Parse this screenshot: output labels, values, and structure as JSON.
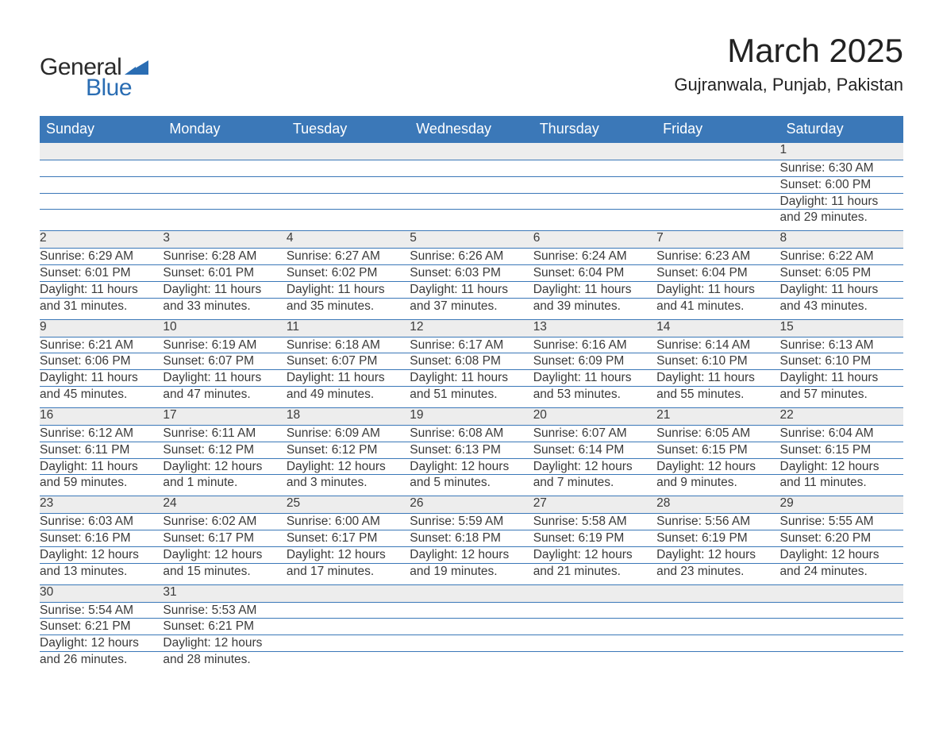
{
  "logo": {
    "word1": "General",
    "word2": "Blue"
  },
  "title": "March 2025",
  "location": "Gujranwala, Punjab, Pakistan",
  "colors": {
    "header_bg": "#3b78b8",
    "header_text": "#ffffff",
    "daynum_bg": "#ededed",
    "border": "#3b78b8",
    "text": "#333333",
    "logo_dark": "#2a2a2a",
    "logo_blue": "#2a6db3",
    "background": "#ffffff"
  },
  "typography": {
    "title_fontsize": 42,
    "location_fontsize": 22,
    "header_fontsize": 18,
    "daynum_fontsize": 17,
    "detail_fontsize": 15.5
  },
  "calendar": {
    "type": "table",
    "columns": [
      "Sunday",
      "Monday",
      "Tuesday",
      "Wednesday",
      "Thursday",
      "Friday",
      "Saturday"
    ],
    "weeks": [
      [
        null,
        null,
        null,
        null,
        null,
        null,
        {
          "day": "1",
          "sunrise": "Sunrise: 6:30 AM",
          "sunset": "Sunset: 6:00 PM",
          "dl1": "Daylight: 11 hours",
          "dl2": "and 29 minutes."
        }
      ],
      [
        {
          "day": "2",
          "sunrise": "Sunrise: 6:29 AM",
          "sunset": "Sunset: 6:01 PM",
          "dl1": "Daylight: 11 hours",
          "dl2": "and 31 minutes."
        },
        {
          "day": "3",
          "sunrise": "Sunrise: 6:28 AM",
          "sunset": "Sunset: 6:01 PM",
          "dl1": "Daylight: 11 hours",
          "dl2": "and 33 minutes."
        },
        {
          "day": "4",
          "sunrise": "Sunrise: 6:27 AM",
          "sunset": "Sunset: 6:02 PM",
          "dl1": "Daylight: 11 hours",
          "dl2": "and 35 minutes."
        },
        {
          "day": "5",
          "sunrise": "Sunrise: 6:26 AM",
          "sunset": "Sunset: 6:03 PM",
          "dl1": "Daylight: 11 hours",
          "dl2": "and 37 minutes."
        },
        {
          "day": "6",
          "sunrise": "Sunrise: 6:24 AM",
          "sunset": "Sunset: 6:04 PM",
          "dl1": "Daylight: 11 hours",
          "dl2": "and 39 minutes."
        },
        {
          "day": "7",
          "sunrise": "Sunrise: 6:23 AM",
          "sunset": "Sunset: 6:04 PM",
          "dl1": "Daylight: 11 hours",
          "dl2": "and 41 minutes."
        },
        {
          "day": "8",
          "sunrise": "Sunrise: 6:22 AM",
          "sunset": "Sunset: 6:05 PM",
          "dl1": "Daylight: 11 hours",
          "dl2": "and 43 minutes."
        }
      ],
      [
        {
          "day": "9",
          "sunrise": "Sunrise: 6:21 AM",
          "sunset": "Sunset: 6:06 PM",
          "dl1": "Daylight: 11 hours",
          "dl2": "and 45 minutes."
        },
        {
          "day": "10",
          "sunrise": "Sunrise: 6:19 AM",
          "sunset": "Sunset: 6:07 PM",
          "dl1": "Daylight: 11 hours",
          "dl2": "and 47 minutes."
        },
        {
          "day": "11",
          "sunrise": "Sunrise: 6:18 AM",
          "sunset": "Sunset: 6:07 PM",
          "dl1": "Daylight: 11 hours",
          "dl2": "and 49 minutes."
        },
        {
          "day": "12",
          "sunrise": "Sunrise: 6:17 AM",
          "sunset": "Sunset: 6:08 PM",
          "dl1": "Daylight: 11 hours",
          "dl2": "and 51 minutes."
        },
        {
          "day": "13",
          "sunrise": "Sunrise: 6:16 AM",
          "sunset": "Sunset: 6:09 PM",
          "dl1": "Daylight: 11 hours",
          "dl2": "and 53 minutes."
        },
        {
          "day": "14",
          "sunrise": "Sunrise: 6:14 AM",
          "sunset": "Sunset: 6:10 PM",
          "dl1": "Daylight: 11 hours",
          "dl2": "and 55 minutes."
        },
        {
          "day": "15",
          "sunrise": "Sunrise: 6:13 AM",
          "sunset": "Sunset: 6:10 PM",
          "dl1": "Daylight: 11 hours",
          "dl2": "and 57 minutes."
        }
      ],
      [
        {
          "day": "16",
          "sunrise": "Sunrise: 6:12 AM",
          "sunset": "Sunset: 6:11 PM",
          "dl1": "Daylight: 11 hours",
          "dl2": "and 59 minutes."
        },
        {
          "day": "17",
          "sunrise": "Sunrise: 6:11 AM",
          "sunset": "Sunset: 6:12 PM",
          "dl1": "Daylight: 12 hours",
          "dl2": "and 1 minute."
        },
        {
          "day": "18",
          "sunrise": "Sunrise: 6:09 AM",
          "sunset": "Sunset: 6:12 PM",
          "dl1": "Daylight: 12 hours",
          "dl2": "and 3 minutes."
        },
        {
          "day": "19",
          "sunrise": "Sunrise: 6:08 AM",
          "sunset": "Sunset: 6:13 PM",
          "dl1": "Daylight: 12 hours",
          "dl2": "and 5 minutes."
        },
        {
          "day": "20",
          "sunrise": "Sunrise: 6:07 AM",
          "sunset": "Sunset: 6:14 PM",
          "dl1": "Daylight: 12 hours",
          "dl2": "and 7 minutes."
        },
        {
          "day": "21",
          "sunrise": "Sunrise: 6:05 AM",
          "sunset": "Sunset: 6:15 PM",
          "dl1": "Daylight: 12 hours",
          "dl2": "and 9 minutes."
        },
        {
          "day": "22",
          "sunrise": "Sunrise: 6:04 AM",
          "sunset": "Sunset: 6:15 PM",
          "dl1": "Daylight: 12 hours",
          "dl2": "and 11 minutes."
        }
      ],
      [
        {
          "day": "23",
          "sunrise": "Sunrise: 6:03 AM",
          "sunset": "Sunset: 6:16 PM",
          "dl1": "Daylight: 12 hours",
          "dl2": "and 13 minutes."
        },
        {
          "day": "24",
          "sunrise": "Sunrise: 6:02 AM",
          "sunset": "Sunset: 6:17 PM",
          "dl1": "Daylight: 12 hours",
          "dl2": "and 15 minutes."
        },
        {
          "day": "25",
          "sunrise": "Sunrise: 6:00 AM",
          "sunset": "Sunset: 6:17 PM",
          "dl1": "Daylight: 12 hours",
          "dl2": "and 17 minutes."
        },
        {
          "day": "26",
          "sunrise": "Sunrise: 5:59 AM",
          "sunset": "Sunset: 6:18 PM",
          "dl1": "Daylight: 12 hours",
          "dl2": "and 19 minutes."
        },
        {
          "day": "27",
          "sunrise": "Sunrise: 5:58 AM",
          "sunset": "Sunset: 6:19 PM",
          "dl1": "Daylight: 12 hours",
          "dl2": "and 21 minutes."
        },
        {
          "day": "28",
          "sunrise": "Sunrise: 5:56 AM",
          "sunset": "Sunset: 6:19 PM",
          "dl1": "Daylight: 12 hours",
          "dl2": "and 23 minutes."
        },
        {
          "day": "29",
          "sunrise": "Sunrise: 5:55 AM",
          "sunset": "Sunset: 6:20 PM",
          "dl1": "Daylight: 12 hours",
          "dl2": "and 24 minutes."
        }
      ],
      [
        {
          "day": "30",
          "sunrise": "Sunrise: 5:54 AM",
          "sunset": "Sunset: 6:21 PM",
          "dl1": "Daylight: 12 hours",
          "dl2": "and 26 minutes."
        },
        {
          "day": "31",
          "sunrise": "Sunrise: 5:53 AM",
          "sunset": "Sunset: 6:21 PM",
          "dl1": "Daylight: 12 hours",
          "dl2": "and 28 minutes."
        },
        null,
        null,
        null,
        null,
        null
      ]
    ]
  }
}
